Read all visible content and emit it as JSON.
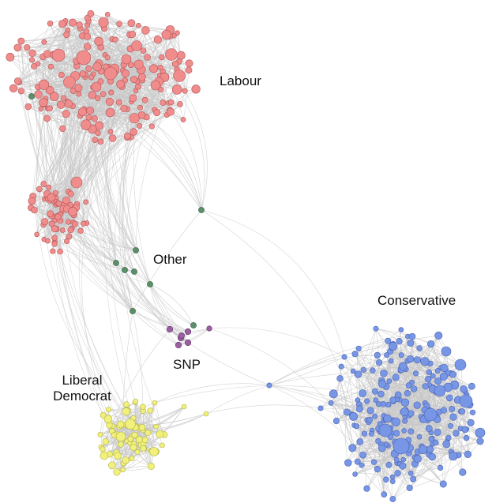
{
  "groups": [
    {
      "key": "labour",
      "label": "Labour",
      "color": "#f08c8c",
      "stroke": "#b25656"
    },
    {
      "key": "conservative",
      "label": "Conservative",
      "color": "#7896e6",
      "stroke": "#4a63b0"
    },
    {
      "key": "libdem",
      "label": "Liberal\nDemocrat",
      "label_line1": "Liberal",
      "label_line2": "Democrat",
      "color": "#f0f07a",
      "stroke": "#b4b44a"
    },
    {
      "key": "other",
      "label": "Other",
      "color": "#5a8f6a",
      "stroke": "#36603f"
    },
    {
      "key": "snp",
      "label": "SNP",
      "color": "#9a5fa0",
      "stroke": "#66386b"
    }
  ],
  "edge_color": "#c8c8c8"
}
